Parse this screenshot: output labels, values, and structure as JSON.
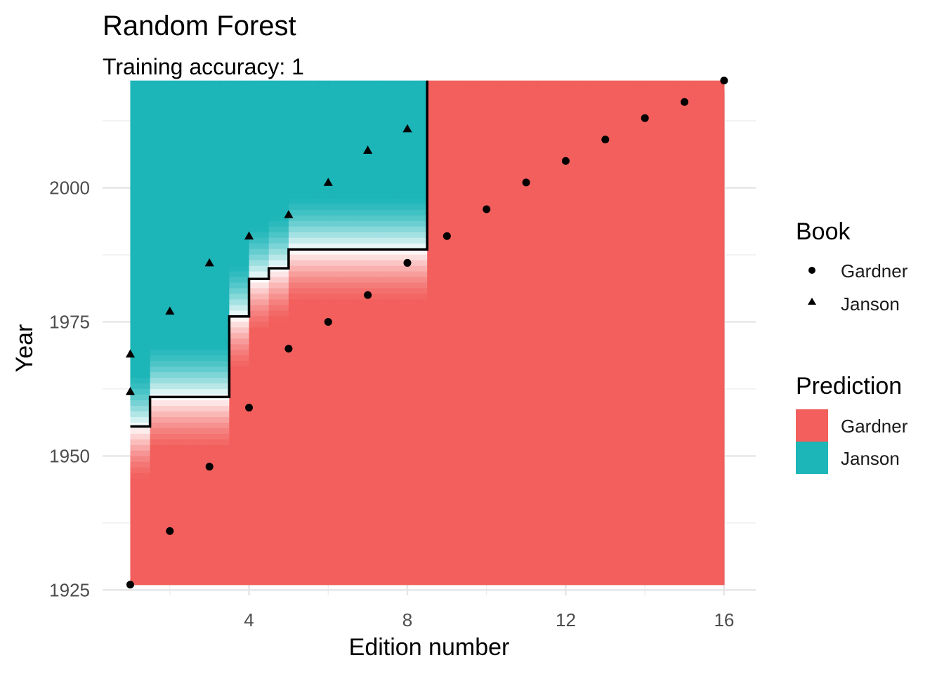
{
  "chart_data": {
    "type": "scatter",
    "title": "Random Forest",
    "subtitle": "Training accuracy: 1",
    "xlabel": "Edition number",
    "ylabel": "Year",
    "x_ticks": [
      4,
      8,
      12,
      16
    ],
    "y_ticks": [
      1925,
      1950,
      1975,
      2000
    ],
    "xlim": [
      0.3,
      16.8
    ],
    "ylim": [
      1924,
      2018
    ],
    "grid": true,
    "legend_position": "right",
    "legends": [
      {
        "title": "Book",
        "entries": [
          {
            "label": "Gardner",
            "shape": "circle"
          },
          {
            "label": "Janson",
            "shape": "triangle"
          }
        ]
      },
      {
        "title": "Prediction",
        "entries": [
          {
            "label": "Gardner",
            "color": "#F25F5C"
          },
          {
            "label": "Janson",
            "color": "#1CB5B8"
          }
        ]
      }
    ],
    "series": [
      {
        "name": "Gardner",
        "shape": "circle",
        "points": [
          [
            1,
            1926
          ],
          [
            2,
            1936
          ],
          [
            3,
            1948
          ],
          [
            4,
            1959
          ],
          [
            5,
            1970
          ],
          [
            6,
            1975
          ],
          [
            7,
            1980
          ],
          [
            8,
            1986
          ],
          [
            9,
            1991
          ],
          [
            10,
            1996
          ],
          [
            11,
            2001
          ],
          [
            12,
            2005
          ],
          [
            13,
            2009
          ],
          [
            14,
            2013
          ],
          [
            15,
            2016
          ],
          [
            16,
            2020
          ]
        ]
      },
      {
        "name": "Janson",
        "shape": "triangle",
        "points": [
          [
            1,
            1962
          ],
          [
            1,
            1969
          ],
          [
            2,
            1977
          ],
          [
            3,
            1986
          ],
          [
            4,
            1991
          ],
          [
            5,
            1995
          ],
          [
            6,
            2001
          ],
          [
            7,
            2007
          ],
          [
            8,
            2011
          ]
        ]
      }
    ],
    "decision_boundary": [
      [
        1,
        1955.5
      ],
      [
        1.5,
        1955.5
      ],
      [
        1.5,
        1961
      ],
      [
        3.5,
        1961
      ],
      [
        3.5,
        1976
      ],
      [
        4,
        1976
      ],
      [
        4,
        1983
      ],
      [
        4.5,
        1983
      ],
      [
        4.5,
        1985
      ],
      [
        5,
        1985
      ],
      [
        5,
        1988.5
      ],
      [
        8.5,
        1988.5
      ],
      [
        8.5,
        2020
      ]
    ],
    "prediction_colors": {
      "Gardner": "#F25F5C",
      "Janson": "#1CB5B8"
    },
    "prediction_region": {
      "x_range": [
        1,
        16
      ],
      "y_range": [
        1926,
        2020
      ]
    }
  }
}
